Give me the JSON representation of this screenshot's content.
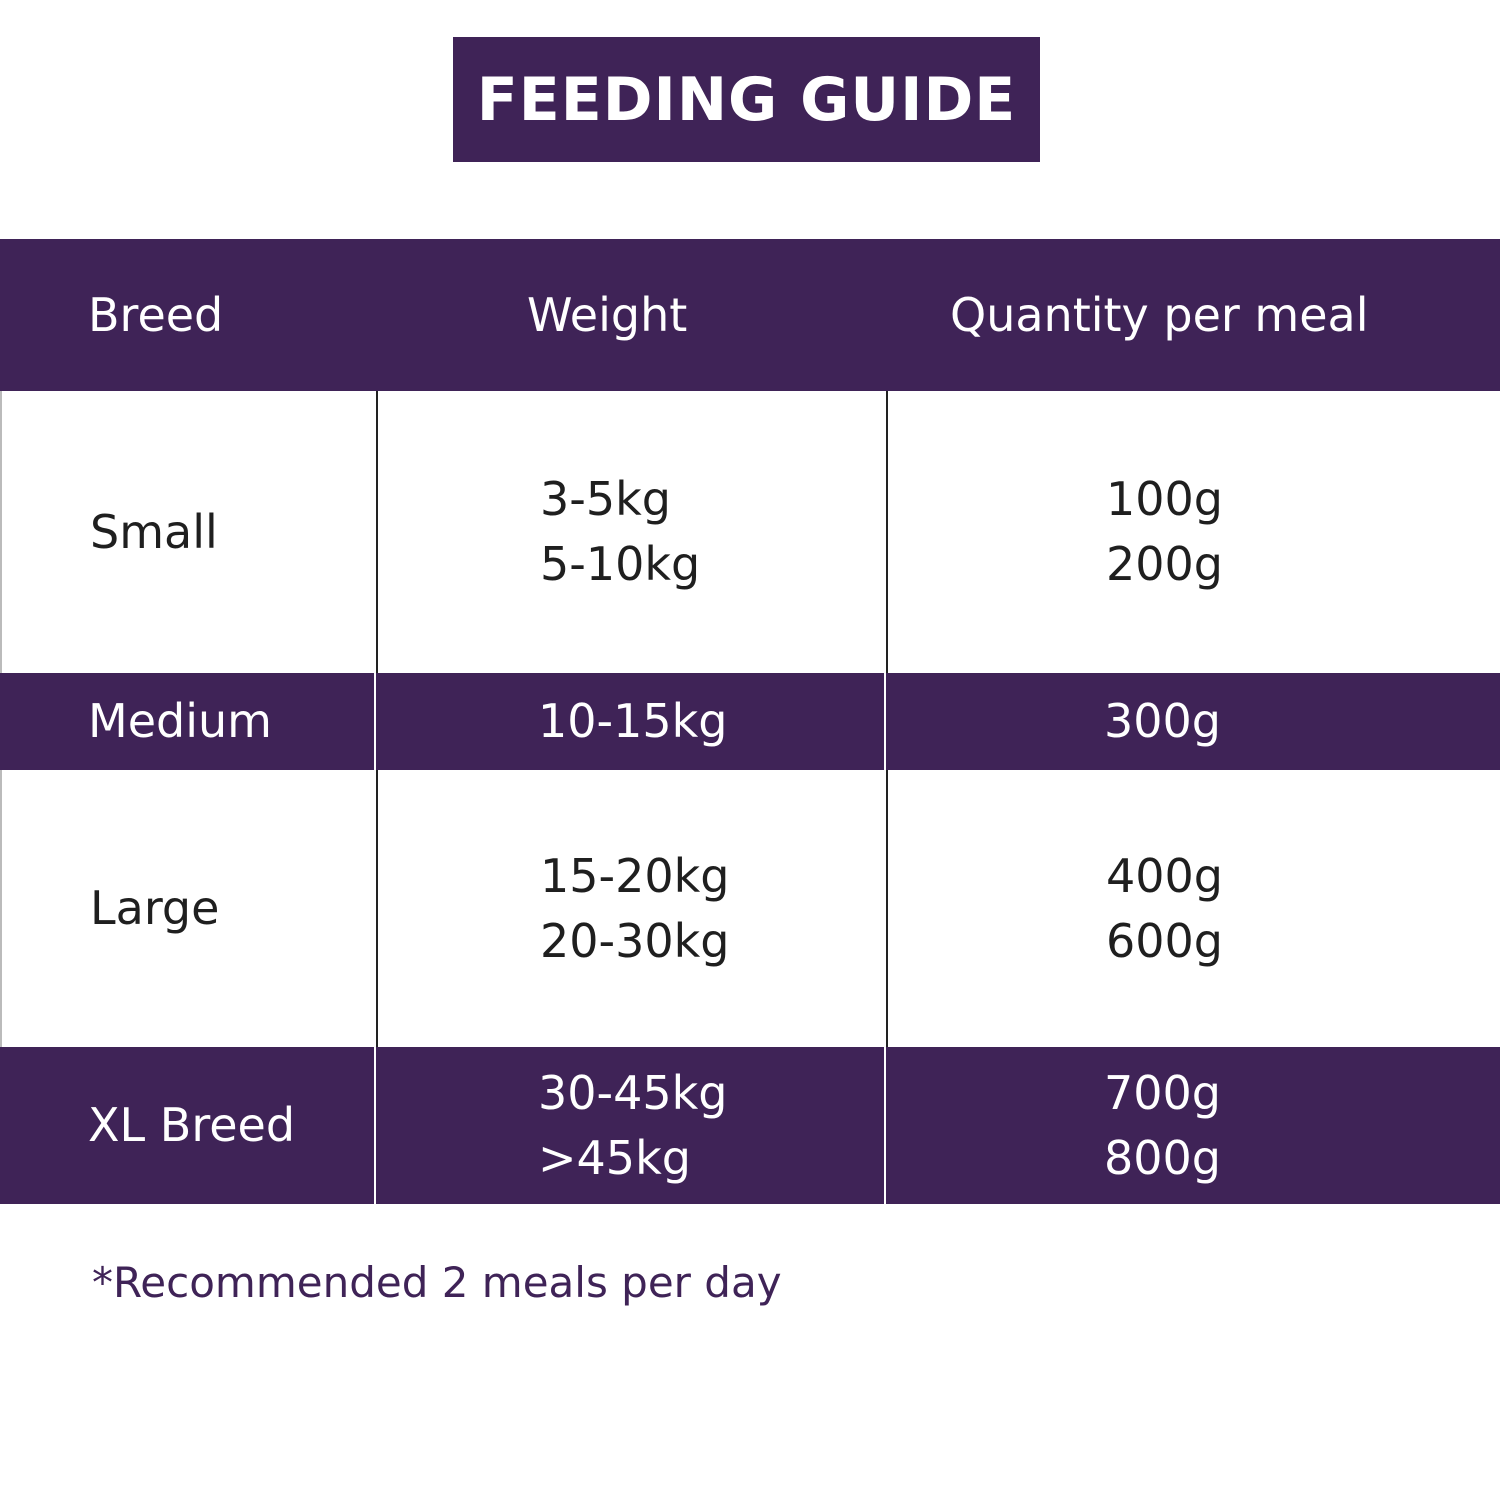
{
  "header": {
    "title": "FEEDING GUIDE"
  },
  "table": {
    "columns": [
      "Breed",
      "Weight",
      "Quantity per meal"
    ],
    "rows": [
      {
        "breed": "Small",
        "weights": [
          "3-5kg",
          "5-10kg"
        ],
        "quantities": [
          "100g",
          "200g"
        ]
      },
      {
        "breed": "Medium",
        "weights": [
          "10-15kg"
        ],
        "quantities": [
          "300g"
        ]
      },
      {
        "breed": "Large",
        "weights": [
          "15-20kg",
          "20-30kg"
        ],
        "quantities": [
          "400g",
          "600g"
        ]
      },
      {
        "breed": "XL Breed",
        "weights": [
          "30-45kg",
          ">45kg"
        ],
        "quantities": [
          "700g",
          "800g"
        ]
      }
    ]
  },
  "footnote": "*Recommended 2 meals per day"
}
